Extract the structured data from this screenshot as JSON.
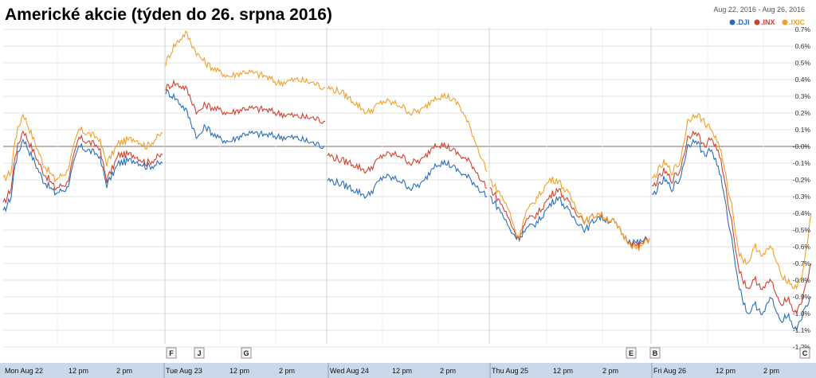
{
  "title": "Americké akcie (týden do 26. srpna 2016)",
  "date_range": "Aug 22, 2016  -  Aug 26, 2016",
  "chart_data": {
    "type": "line",
    "y_unit": "%",
    "ylim": [
      -1.25,
      0.75
    ],
    "y_ticks": [
      "0.7%",
      "0.6%",
      "0.5%",
      "0.4%",
      "0.3%",
      "0.2%",
      "0.1%",
      "-0.0%",
      "-0.1%",
      "-0.2%",
      "-0.3%",
      "-0.4%",
      "-0.5%",
      "-0.6%",
      "-0.7%",
      "-0.8%",
      "-0.9%",
      "-1.0%",
      "-1.1%",
      "-1.2%"
    ],
    "x_labels": [
      "Mon Aug 22",
      "12 pm",
      "2 pm",
      "Tue Aug 23",
      "12 pm",
      "2 pm",
      "Wed Aug 24",
      "12 pm",
      "2 pm",
      "Thu Aug 25",
      "12 pm",
      "2 pm",
      "Fri Aug 26",
      "12 pm",
      "2 pm"
    ],
    "event_markers": [
      "F",
      "J",
      "G",
      "E",
      "B",
      "C"
    ],
    "series": [
      {
        "name": ".DJI",
        "color": "#2a6ebb",
        "days": [
          [
            [
              0,
              -0.4
            ],
            [
              2,
              -0.3
            ],
            [
              3,
              -0.1
            ],
            [
              5,
              0.05
            ],
            [
              10,
              -0.2
            ],
            [
              13,
              -0.28
            ],
            [
              16,
              -0.25
            ],
            [
              19,
              0.0
            ],
            [
              24,
              -0.05
            ],
            [
              26,
              -0.23
            ],
            [
              29,
              -0.1
            ],
            [
              33,
              -0.08
            ],
            [
              36,
              -0.12
            ],
            [
              40,
              -0.1
            ]
          ],
          [
            [
              0,
              0.33
            ],
            [
              2,
              0.3
            ],
            [
              5,
              0.22
            ],
            [
              8,
              0.05
            ],
            [
              10,
              0.12
            ],
            [
              13,
              0.05
            ],
            [
              16,
              0.03
            ],
            [
              20,
              0.08
            ],
            [
              25,
              0.07
            ],
            [
              28,
              0.06
            ],
            [
              33,
              0.05
            ],
            [
              37,
              0.02
            ],
            [
              40,
              0.0
            ]
          ],
          [
            [
              0,
              -0.2
            ],
            [
              3,
              -0.22
            ],
            [
              6,
              -0.25
            ],
            [
              10,
              -0.3
            ],
            [
              14,
              -0.18
            ],
            [
              18,
              -0.2
            ],
            [
              21,
              -0.25
            ],
            [
              24,
              -0.22
            ],
            [
              27,
              -0.1
            ],
            [
              30,
              -0.1
            ],
            [
              33,
              -0.15
            ],
            [
              36,
              -0.2
            ],
            [
              40,
              -0.3
            ]
          ],
          [
            [
              0,
              -0.3
            ],
            [
              3,
              -0.4
            ],
            [
              5,
              -0.5
            ],
            [
              7,
              -0.55
            ],
            [
              9,
              -0.5
            ],
            [
              12,
              -0.45
            ],
            [
              15,
              -0.35
            ],
            [
              17,
              -0.3
            ],
            [
              20,
              -0.4
            ],
            [
              24,
              -0.5
            ],
            [
              27,
              -0.42
            ],
            [
              31,
              -0.45
            ],
            [
              34,
              -0.55
            ],
            [
              37,
              -0.58
            ],
            [
              40,
              -0.55
            ]
          ],
          [
            [
              0,
              -0.3
            ],
            [
              3,
              -0.2
            ],
            [
              5,
              -0.25
            ],
            [
              7,
              -0.2
            ],
            [
              9,
              0.0
            ],
            [
              11,
              0.05
            ],
            [
              13,
              -0.05
            ],
            [
              15,
              -0.02
            ],
            [
              17,
              -0.15
            ],
            [
              20,
              -0.55
            ],
            [
              22,
              -0.85
            ],
            [
              24,
              -1.0
            ],
            [
              26,
              -0.95
            ],
            [
              28,
              -1.0
            ],
            [
              30,
              -0.9
            ],
            [
              32,
              -1.05
            ],
            [
              34,
              -1.0
            ],
            [
              36,
              -1.1
            ],
            [
              38,
              -1.0
            ],
            [
              40,
              -0.9
            ]
          ]
        ]
      },
      {
        "name": ".INX",
        "color": "#d2402c",
        "days": [
          [
            [
              0,
              -0.35
            ],
            [
              2,
              -0.25
            ],
            [
              3,
              -0.05
            ],
            [
              5,
              0.1
            ],
            [
              10,
              -0.15
            ],
            [
              13,
              -0.25
            ],
            [
              16,
              -0.22
            ],
            [
              19,
              0.05
            ],
            [
              24,
              0.0
            ],
            [
              26,
              -0.2
            ],
            [
              29,
              -0.05
            ],
            [
              33,
              -0.05
            ],
            [
              36,
              -0.1
            ],
            [
              40,
              -0.05
            ]
          ],
          [
            [
              0,
              0.35
            ],
            [
              2,
              0.38
            ],
            [
              5,
              0.35
            ],
            [
              8,
              0.2
            ],
            [
              10,
              0.25
            ],
            [
              13,
              0.22
            ],
            [
              16,
              0.2
            ],
            [
              20,
              0.23
            ],
            [
              25,
              0.22
            ],
            [
              28,
              0.2
            ],
            [
              33,
              0.18
            ],
            [
              37,
              0.17
            ],
            [
              40,
              0.15
            ]
          ],
          [
            [
              0,
              -0.05
            ],
            [
              3,
              -0.08
            ],
            [
              6,
              -0.1
            ],
            [
              10,
              -0.15
            ],
            [
              14,
              -0.05
            ],
            [
              18,
              -0.05
            ],
            [
              21,
              -0.1
            ],
            [
              24,
              -0.08
            ],
            [
              27,
              0.02
            ],
            [
              30,
              0.0
            ],
            [
              33,
              -0.05
            ],
            [
              36,
              -0.1
            ],
            [
              40,
              -0.25
            ]
          ],
          [
            [
              0,
              -0.25
            ],
            [
              3,
              -0.35
            ],
            [
              5,
              -0.45
            ],
            [
              7,
              -0.55
            ],
            [
              9,
              -0.45
            ],
            [
              12,
              -0.4
            ],
            [
              15,
              -0.3
            ],
            [
              17,
              -0.25
            ],
            [
              20,
              -0.35
            ],
            [
              24,
              -0.45
            ],
            [
              27,
              -0.4
            ],
            [
              31,
              -0.45
            ],
            [
              34,
              -0.55
            ],
            [
              37,
              -0.6
            ],
            [
              40,
              -0.55
            ]
          ],
          [
            [
              0,
              -0.25
            ],
            [
              3,
              -0.15
            ],
            [
              5,
              -0.2
            ],
            [
              7,
              -0.15
            ],
            [
              9,
              0.05
            ],
            [
              11,
              0.1
            ],
            [
              13,
              0.0
            ],
            [
              15,
              0.05
            ],
            [
              17,
              -0.05
            ],
            [
              20,
              -0.45
            ],
            [
              22,
              -0.75
            ],
            [
              24,
              -0.85
            ],
            [
              26,
              -0.8
            ],
            [
              28,
              -0.85
            ],
            [
              30,
              -0.8
            ],
            [
              32,
              -0.95
            ],
            [
              34,
              -0.9
            ],
            [
              36,
              -1.0
            ],
            [
              38,
              -0.9
            ],
            [
              40,
              -0.7
            ]
          ]
        ]
      },
      {
        "name": ".IXIC",
        "color": "#f0a02a",
        "days": [
          [
            [
              0,
              -0.2
            ],
            [
              2,
              -0.15
            ],
            [
              3,
              0.05
            ],
            [
              5,
              0.2
            ],
            [
              10,
              -0.1
            ],
            [
              13,
              -0.2
            ],
            [
              16,
              -0.15
            ],
            [
              19,
              0.1
            ],
            [
              24,
              0.05
            ],
            [
              26,
              -0.1
            ],
            [
              29,
              0.02
            ],
            [
              33,
              0.05
            ],
            [
              36,
              0.0
            ],
            [
              40,
              0.08
            ]
          ],
          [
            [
              0,
              0.5
            ],
            [
              2,
              0.6
            ],
            [
              5,
              0.68
            ],
            [
              8,
              0.55
            ],
            [
              10,
              0.5
            ],
            [
              13,
              0.45
            ],
            [
              16,
              0.42
            ],
            [
              20,
              0.45
            ],
            [
              25,
              0.42
            ],
            [
              28,
              0.38
            ],
            [
              33,
              0.4
            ],
            [
              37,
              0.38
            ],
            [
              40,
              0.35
            ]
          ],
          [
            [
              0,
              0.35
            ],
            [
              3,
              0.33
            ],
            [
              6,
              0.28
            ],
            [
              10,
              0.2
            ],
            [
              14,
              0.27
            ],
            [
              18,
              0.25
            ],
            [
              21,
              0.2
            ],
            [
              24,
              0.22
            ],
            [
              27,
              0.3
            ],
            [
              30,
              0.3
            ],
            [
              33,
              0.25
            ],
            [
              36,
              0.1
            ],
            [
              40,
              -0.15
            ]
          ],
          [
            [
              0,
              -0.2
            ],
            [
              3,
              -0.3
            ],
            [
              5,
              -0.4
            ],
            [
              7,
              -0.55
            ],
            [
              9,
              -0.4
            ],
            [
              12,
              -0.3
            ],
            [
              15,
              -0.2
            ],
            [
              17,
              -0.2
            ],
            [
              20,
              -0.3
            ],
            [
              24,
              -0.45
            ],
            [
              27,
              -0.4
            ],
            [
              31,
              -0.45
            ],
            [
              34,
              -0.55
            ],
            [
              37,
              -0.62
            ],
            [
              40,
              -0.55
            ]
          ],
          [
            [
              0,
              -0.2
            ],
            [
              3,
              -0.1
            ],
            [
              5,
              -0.15
            ],
            [
              7,
              -0.1
            ],
            [
              9,
              0.15
            ],
            [
              11,
              0.2
            ],
            [
              13,
              0.15
            ],
            [
              15,
              0.1
            ],
            [
              17,
              0.0
            ],
            [
              20,
              -0.35
            ],
            [
              22,
              -0.65
            ],
            [
              24,
              -0.7
            ],
            [
              26,
              -0.6
            ],
            [
              28,
              -0.65
            ],
            [
              30,
              -0.6
            ],
            [
              32,
              -0.75
            ],
            [
              34,
              -0.8
            ],
            [
              36,
              -0.85
            ],
            [
              38,
              -0.75
            ],
            [
              40,
              -0.4
            ]
          ]
        ]
      }
    ]
  }
}
